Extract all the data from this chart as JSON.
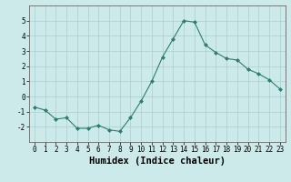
{
  "x": [
    0,
    1,
    2,
    3,
    4,
    5,
    6,
    7,
    8,
    9,
    10,
    11,
    12,
    13,
    14,
    15,
    16,
    17,
    18,
    19,
    20,
    21,
    22,
    23
  ],
  "y": [
    -0.7,
    -0.9,
    -1.5,
    -1.4,
    -2.1,
    -2.1,
    -1.9,
    -2.2,
    -2.3,
    -1.4,
    -0.3,
    1.0,
    2.6,
    3.8,
    5.0,
    4.9,
    3.4,
    2.9,
    2.5,
    2.4,
    1.8,
    1.5,
    1.1,
    0.5
  ],
  "line_color": "#2e7d6e",
  "marker": "D",
  "marker_size": 2.0,
  "bg_color": "#cceaea",
  "grid_color": "#aacece",
  "xlabel": "Humidex (Indice chaleur)",
  "ylim": [
    -3,
    6
  ],
  "xlim": [
    -0.5,
    23.5
  ],
  "yticks": [
    -2,
    -1,
    0,
    1,
    2,
    3,
    4,
    5
  ],
  "xticks": [
    0,
    1,
    2,
    3,
    4,
    5,
    6,
    7,
    8,
    9,
    10,
    11,
    12,
    13,
    14,
    15,
    16,
    17,
    18,
    19,
    20,
    21,
    22,
    23
  ],
  "tick_label_fontsize": 5.5,
  "xlabel_fontsize": 7.5,
  "xlabel_fontweight": "bold"
}
